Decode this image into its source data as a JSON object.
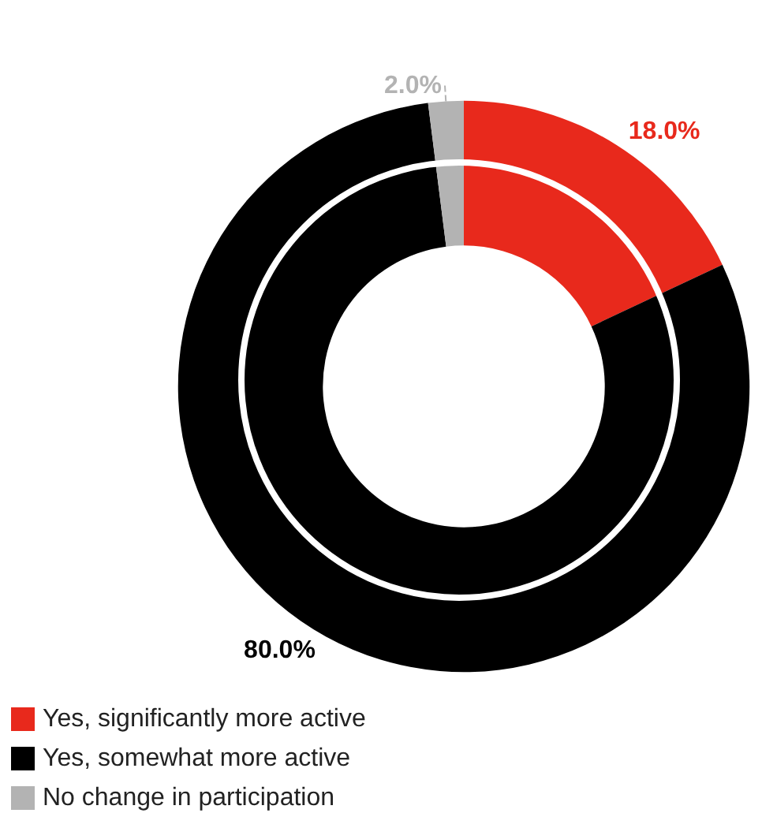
{
  "chart_data": {
    "type": "donut",
    "categories": [
      "Yes, significantly more active",
      "Yes, somewhat more active",
      "No change in participation"
    ],
    "values": [
      18.0,
      80.0,
      2.0
    ],
    "colors": [
      "#e8291c",
      "#000000",
      "#b3b3b3"
    ],
    "value_labels": [
      "18.0%",
      "80.0%",
      "2.0%"
    ],
    "legend": "bottom left"
  }
}
